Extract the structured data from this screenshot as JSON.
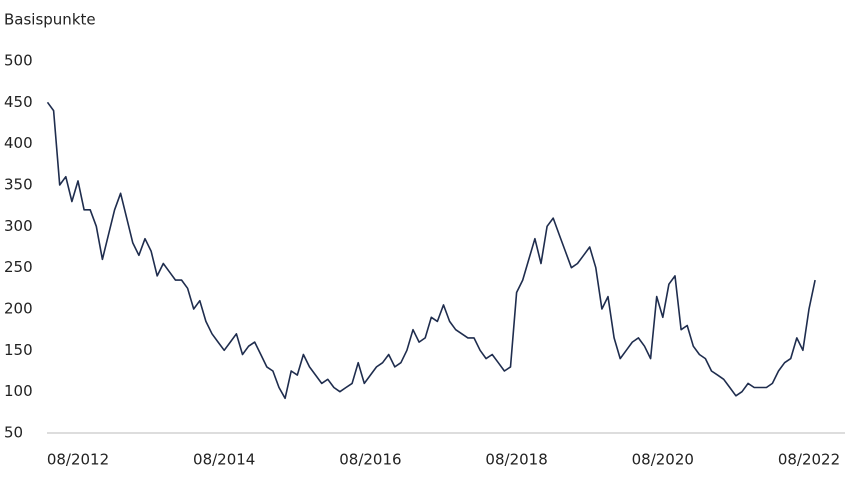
{
  "chart_data": {
    "type": "line",
    "y_axis_label": "Basispunkte",
    "x": [
      "03/2012",
      "04/2012",
      "05/2012",
      "06/2012",
      "07/2012",
      "08/2012",
      "09/2012",
      "10/2012",
      "11/2012",
      "12/2012",
      "01/2013",
      "02/2013",
      "03/2013",
      "04/2013",
      "05/2013",
      "06/2013",
      "07/2013",
      "08/2013",
      "09/2013",
      "10/2013",
      "11/2013",
      "12/2013",
      "01/2014",
      "02/2014",
      "03/2014",
      "04/2014",
      "05/2014",
      "06/2014",
      "07/2014",
      "08/2014",
      "09/2014",
      "10/2014",
      "11/2014",
      "12/2014",
      "01/2015",
      "02/2015",
      "03/2015",
      "04/2015",
      "05/2015",
      "06/2015",
      "07/2015",
      "08/2015",
      "09/2015",
      "10/2015",
      "11/2015",
      "12/2015",
      "01/2016",
      "02/2016",
      "03/2016",
      "04/2016",
      "05/2016",
      "06/2016",
      "07/2016",
      "08/2016",
      "09/2016",
      "10/2016",
      "11/2016",
      "12/2016",
      "01/2017",
      "02/2017",
      "03/2017",
      "04/2017",
      "05/2017",
      "06/2017",
      "07/2017",
      "08/2017",
      "09/2017",
      "10/2017",
      "11/2017",
      "12/2017",
      "01/2018",
      "02/2018",
      "03/2018",
      "04/2018",
      "05/2018",
      "06/2018",
      "07/2018",
      "08/2018",
      "09/2018",
      "10/2018",
      "11/2018",
      "12/2018",
      "01/2019",
      "02/2019",
      "03/2019",
      "04/2019",
      "05/2019",
      "06/2019",
      "07/2019",
      "08/2019",
      "09/2019",
      "10/2019",
      "11/2019",
      "12/2019",
      "01/2020",
      "02/2020",
      "03/2020",
      "04/2020",
      "05/2020",
      "06/2020",
      "07/2020",
      "08/2020",
      "09/2020",
      "10/2020",
      "11/2020",
      "12/2020",
      "01/2021",
      "02/2021",
      "03/2021",
      "04/2021",
      "05/2021",
      "06/2021",
      "07/2021",
      "08/2021",
      "09/2021",
      "10/2021",
      "11/2021",
      "12/2021",
      "01/2022",
      "02/2022",
      "03/2022",
      "04/2022",
      "05/2022",
      "06/2022",
      "07/2022",
      "08/2022",
      "09/2022"
    ],
    "series": [
      {
        "color": "#1f2d4e",
        "values": [
          450,
          440,
          350,
          360,
          330,
          355,
          320,
          320,
          300,
          260,
          290,
          320,
          340,
          310,
          280,
          265,
          285,
          270,
          240,
          255,
          245,
          235,
          235,
          225,
          200,
          210,
          185,
          170,
          160,
          150,
          160,
          170,
          145,
          155,
          160,
          145,
          130,
          125,
          105,
          92,
          125,
          120,
          145,
          130,
          120,
          110,
          115,
          105,
          100,
          105,
          110,
          135,
          110,
          120,
          130,
          135,
          145,
          130,
          135,
          150,
          175,
          160,
          165,
          190,
          185,
          205,
          185,
          175,
          170,
          165,
          165,
          150,
          140,
          145,
          135,
          125,
          130,
          220,
          235,
          260,
          285,
          255,
          300,
          310,
          290,
          270,
          250,
          255,
          265,
          275,
          250,
          200,
          215,
          165,
          140,
          150,
          160,
          165,
          155,
          140,
          215,
          190,
          230,
          240,
          175,
          180,
          155,
          145,
          140,
          125,
          120,
          115,
          105,
          95,
          100,
          110,
          105,
          105,
          105,
          110,
          125,
          135,
          140,
          165,
          150,
          200,
          235
        ]
      }
    ],
    "xticks": [
      "08/2012",
      "08/2014",
      "08/2016",
      "08/2018",
      "08/2020",
      "08/2022"
    ],
    "ylim": [
      50,
      500
    ],
    "yticks": [
      50,
      100,
      150,
      200,
      250,
      300,
      350,
      400,
      450,
      500
    ],
    "grid": false
  }
}
